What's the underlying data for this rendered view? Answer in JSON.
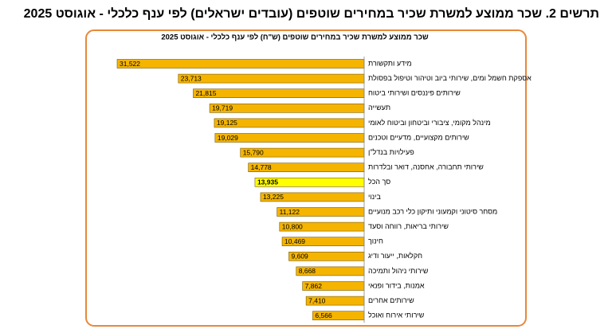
{
  "chart_data": {
    "type": "hbar",
    "title": "תרשים 2. שכר ממוצע למשרת שכיר במחירים שוטפים (עובדים ישראלים) לפי ענף כלכלי -  אוגוסט 2025",
    "subtitle": "שכר ממוצע למשרת שכיר במחירים שוטפים (ש\"ח) לפי ענף כלכלי - אוגוסט 2025",
    "categories": [
      "מידע ותקשורת",
      "אספקת חשמל ומים, שירותי ביוב וטיהור וטיפול בפסולת",
      "שירותים פיננסים ושירותי ביטוח",
      "תעשייה",
      "מינהל מקומי, ציבורי וביטחון וביטוח לאומי",
      "שירותים מקצועיים, מדעיים וטכנים",
      "פעילויות בנדל\"ן",
      "שירותי תחבורה, אחסנה, דואר ובלדרות",
      "סך הכל",
      "בינוי",
      "מסחר סיטוני וקמעוני ותיקון כלי רכב מנועיים",
      "שירותי בריאות, רווחה וסעד",
      "חינוך",
      "חקלאות, ייעור ודיג",
      "שירותי ניהול ותמיכה",
      "אמנות, בידור ופנאי",
      "שירותים אחרים",
      "שירותי אירוח ואוכל"
    ],
    "values": [
      31522,
      23713,
      21815,
      19719,
      19125,
      19029,
      15790,
      14778,
      13935,
      13225,
      11122,
      10800,
      10469,
      9609,
      8668,
      7862,
      7410,
      6566
    ],
    "value_labels": [
      "31,522",
      "23,713",
      "21,815",
      "19,719",
      "19,125",
      "19,029",
      "15,790",
      "14,778",
      "13,935",
      "13,225",
      "11,122",
      "10,800",
      "10,469",
      "9,609",
      "8,668",
      "7,862",
      "7,410",
      "6,566"
    ],
    "colors": [
      "#f4b400",
      "#f4b400",
      "#f4b400",
      "#f4b400",
      "#f4b400",
      "#f4b400",
      "#f4b400",
      "#f4b400",
      "#ffff00",
      "#f4b400",
      "#f4b400",
      "#f4b400",
      "#f4b400",
      "#f4b400",
      "#f4b400",
      "#f4b400",
      "#f4b400",
      "#f4b400"
    ]
  }
}
